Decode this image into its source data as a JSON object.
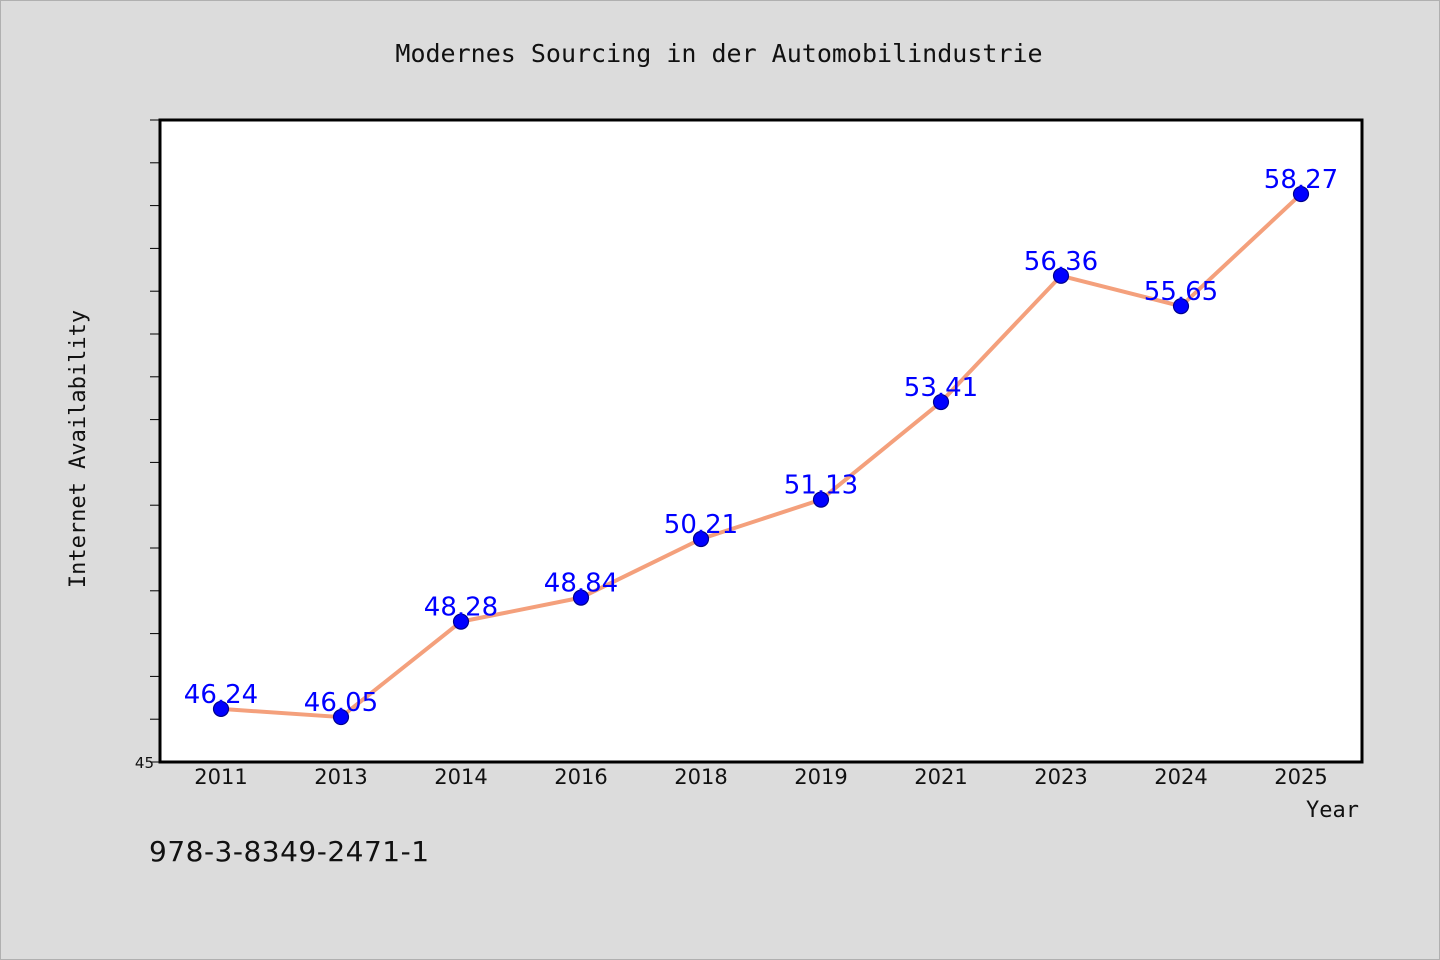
{
  "identifier": "978-3-8349-2471-1",
  "chart_data": {
    "type": "line",
    "title": "Modernes Sourcing in der Automobilindustrie",
    "xlabel": "Year",
    "ylabel": "Internet Availability",
    "categories": [
      "2011",
      "2013",
      "2014",
      "2016",
      "2018",
      "2019",
      "2021",
      "2023",
      "2024",
      "2025"
    ],
    "values": [
      46.24,
      46.05,
      48.28,
      48.84,
      50.21,
      51.13,
      53.41,
      56.36,
      55.65,
      58.27
    ],
    "data_labels": [
      "46.24",
      "46.05",
      "48.28",
      "48.84",
      "50.21",
      "51.13",
      "53.41",
      "56.36",
      "55.65",
      "58.27"
    ],
    "ytick_labels": [
      "45"
    ],
    "ylim": [
      45,
      60
    ],
    "grid": false,
    "legend": "none",
    "colors": {
      "line": "#f4a07c",
      "marker": "#0000ff",
      "label": "#0000ff",
      "plot_background": "#ffffff",
      "figure_background": "#dcdcdc"
    }
  }
}
